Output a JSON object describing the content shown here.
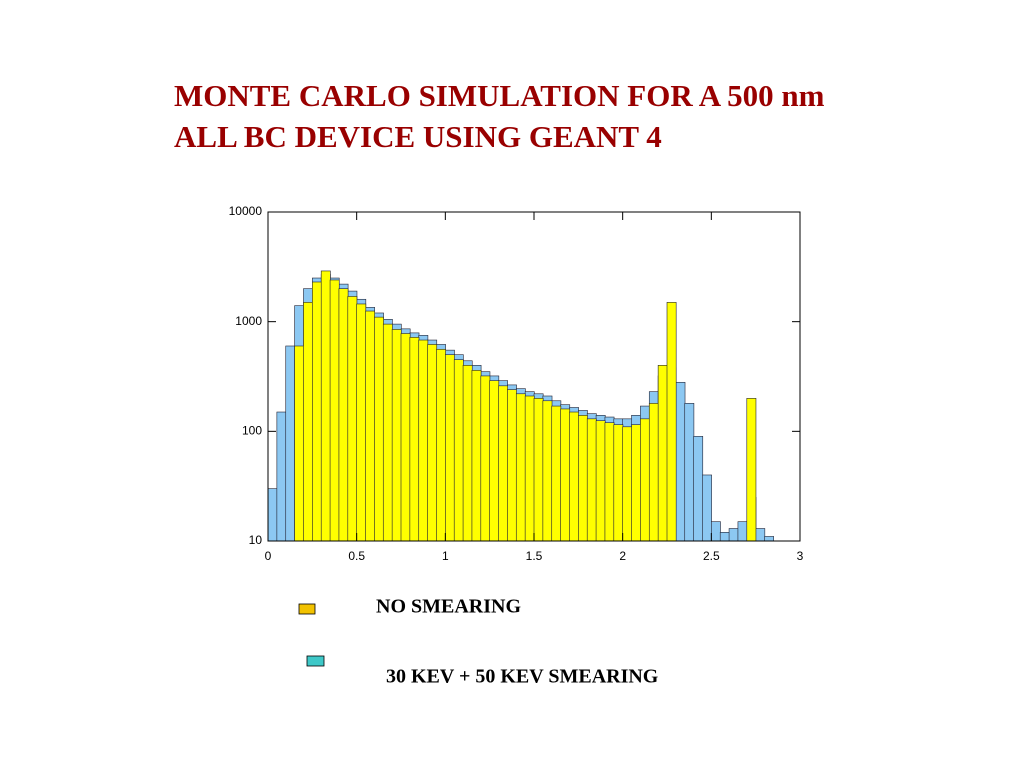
{
  "chart_data": {
    "type": "histogram",
    "title": [
      "MONTE CARLO SIMULATION FOR A 500 nm",
      "ALL BC DEVICE USING GEANT 4"
    ],
    "bins": [
      0,
      0.05,
      0.1,
      0.15,
      0.2,
      0.25,
      0.3,
      0.35,
      0.4,
      0.45,
      0.5,
      0.55,
      0.6,
      0.65,
      0.7,
      0.75,
      0.8,
      0.85,
      0.9,
      0.95,
      1,
      1.05,
      1.1,
      1.15,
      1.2,
      1.25,
      1.3,
      1.35,
      1.4,
      1.45,
      1.5,
      1.55,
      1.6,
      1.65,
      1.7,
      1.75,
      1.8,
      1.85,
      1.9,
      1.95,
      2,
      2.05,
      2.1,
      2.15,
      2.2,
      2.25,
      2.3,
      2.35,
      2.4,
      2.45,
      2.5,
      2.55,
      2.6,
      2.65,
      2.7,
      2.75,
      2.8,
      2.85,
      2.9,
      2.95,
      3
    ],
    "series": [
      {
        "name": "30 KEV + 50 KEV SMEARING",
        "color": "#8cc8f2",
        "legend_color": "#3ec8c8",
        "values": [
          30,
          150,
          600,
          1400,
          2000,
          2500,
          2700,
          2500,
          2200,
          1900,
          1600,
          1350,
          1200,
          1050,
          950,
          860,
          790,
          750,
          680,
          620,
          550,
          500,
          440,
          400,
          350,
          320,
          290,
          265,
          245,
          230,
          220,
          210,
          190,
          175,
          165,
          155,
          145,
          140,
          135,
          130,
          130,
          140,
          170,
          230,
          320,
          380,
          280,
          180,
          90,
          40,
          15,
          12,
          13,
          15,
          25,
          13,
          11,
          null,
          null,
          null
        ]
      },
      {
        "name": "NO SMEARING",
        "color": "#ffff00",
        "legend_color": "#f2c200",
        "values": [
          null,
          null,
          null,
          600,
          1500,
          2300,
          2900,
          2400,
          2000,
          1700,
          1450,
          1250,
          1100,
          950,
          850,
          780,
          720,
          680,
          620,
          560,
          500,
          450,
          400,
          360,
          320,
          290,
          260,
          240,
          220,
          210,
          200,
          190,
          170,
          160,
          150,
          140,
          130,
          125,
          120,
          115,
          110,
          115,
          130,
          180,
          400,
          1500,
          null,
          null,
          null,
          null,
          null,
          null,
          null,
          null,
          200,
          null,
          null,
          null,
          null,
          null
        ]
      }
    ],
    "xlim": [
      0,
      3
    ],
    "xticks": [
      0,
      0.5,
      1,
      1.5,
      2,
      2.5,
      3
    ],
    "ylim": [
      10,
      10000
    ],
    "yticks": [
      10,
      100,
      1000,
      10000
    ],
    "log_y": true
  }
}
